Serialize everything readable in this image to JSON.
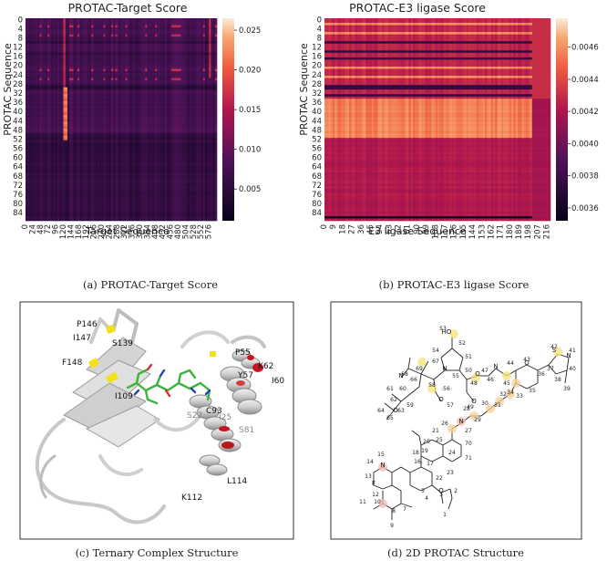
{
  "panel_a": {
    "title": "PROTAC-Target Score",
    "ylabel": "PROTAC Sequence",
    "xlabel": "Target Sequence",
    "yticks": [
      "0",
      "4",
      "8",
      "12",
      "16",
      "20",
      "24",
      "28",
      "32",
      "36",
      "40",
      "44",
      "48",
      "52",
      "56",
      "60",
      "64",
      "68",
      "72",
      "76",
      "80",
      "84"
    ],
    "xticks": [
      "0",
      "24",
      "48",
      "72",
      "96",
      "120",
      "144",
      "168",
      "192",
      "216",
      "240",
      "264",
      "288",
      "312",
      "336",
      "360",
      "384",
      "408",
      "432",
      "456",
      "480",
      "504",
      "528",
      "552",
      "576"
    ],
    "cbar_ticks": [
      "0.025",
      "0.020",
      "0.015",
      "0.010",
      "0.005"
    ],
    "caption": "(a) PROTAC-Target Score"
  },
  "panel_b": {
    "title": "PROTAC-E3 ligase Score",
    "ylabel": "PROTAC Sequence",
    "xlabel": "E3 ligase Sequence",
    "yticks": [
      "0",
      "4",
      "8",
      "12",
      "16",
      "20",
      "24",
      "28",
      "32",
      "36",
      "40",
      "44",
      "48",
      "52",
      "56",
      "60",
      "64",
      "68",
      "72",
      "76",
      "80",
      "84"
    ],
    "xticks": [
      "0",
      "9",
      "18",
      "27",
      "36",
      "45",
      "54",
      "63",
      "72",
      "81",
      "90",
      "99",
      "108",
      "117",
      "126",
      "135",
      "144",
      "153",
      "162",
      "171",
      "180",
      "189",
      "198",
      "207",
      "216"
    ],
    "cbar_ticks": [
      "0.0046",
      "0.0044",
      "0.0042",
      "0.0040",
      "0.0038",
      "0.0036"
    ],
    "caption": "(b) PROTAC-E3 ligase Score"
  },
  "panel_c": {
    "residues_dark": [
      "P146",
      "I147",
      "S139",
      "F148",
      "I109",
      "P55",
      "Y57",
      "K62",
      "I60",
      "C93",
      "L114",
      "K112"
    ],
    "residues_grey": [
      "S22",
      "I25",
      "S81"
    ],
    "caption": "(c) Ternary Complex Structure"
  },
  "panel_d": {
    "atom_labels": [
      "N",
      "O",
      "O",
      "N",
      "O",
      "O",
      "N",
      "O",
      "N",
      "O",
      "N",
      "S",
      "N",
      "F",
      "HO"
    ],
    "atom_numbers": [
      "53",
      "52",
      "51",
      "54",
      "67",
      "69",
      "68",
      "66",
      "55",
      "50",
      "58",
      "56",
      "57",
      "61",
      "60",
      "59",
      "62",
      "64",
      "63",
      "65",
      "49",
      "48",
      "47",
      "46",
      "45",
      "44",
      "43",
      "36",
      "35",
      "34",
      "37",
      "42",
      "41",
      "40",
      "38",
      "39",
      "33",
      "32",
      "31",
      "30",
      "29",
      "28",
      "27",
      "26",
      "25",
      "70",
      "24",
      "71",
      "21",
      "20",
      "19",
      "18",
      "17",
      "16",
      "15",
      "14",
      "13",
      "12",
      "11",
      "10",
      "9",
      "8",
      "7",
      "5",
      "4",
      "3",
      "2",
      "1",
      "22",
      "23"
    ],
    "caption": "(d) 2D PROTAC Structure"
  },
  "colors": {
    "dark": "#0b0420",
    "mid": "#b1164d",
    "bright": "#f5a06a",
    "peak": "#fbe8d6",
    "protein": "#d8d8d8",
    "ligand": "#3cb43c"
  }
}
